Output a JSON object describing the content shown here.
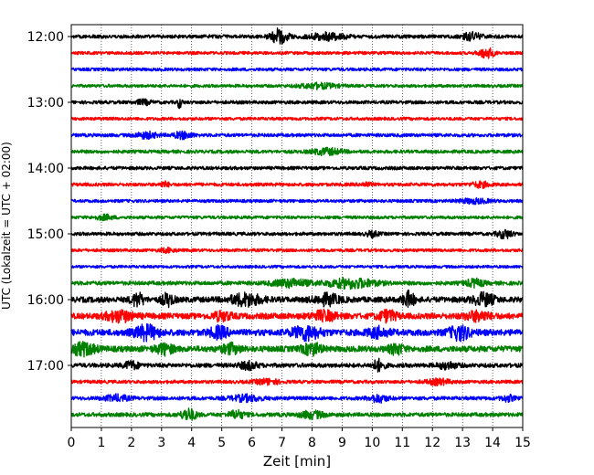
{
  "chart_data": {
    "type": "line",
    "title": "",
    "xlabel": "Zeit  [min]",
    "ylabel": "UTC (Lokalzeit = UTC + 02:00)",
    "xlim": [
      0,
      15
    ],
    "x_ticks": [
      "0",
      "1",
      "2",
      "3",
      "4",
      "5",
      "6",
      "7",
      "8",
      "9",
      "10",
      "11",
      "12",
      "13",
      "14",
      "15"
    ],
    "y_ticks": [
      "12:00",
      "13:00",
      "14:00",
      "15:00",
      "16:00",
      "17:00"
    ],
    "grid": "vertical-dotted",
    "trace_interval_min": 15,
    "trace_color_cycle": [
      "#000000",
      "#ff0000",
      "#0000ff",
      "#008000"
    ],
    "traces": [
      {
        "start": "12:00",
        "amplitude": 0.25,
        "events": [
          {
            "t": 6.9,
            "amp": 1.0,
            "dur": 0.6
          },
          {
            "t": 8.5,
            "amp": 0.45,
            "dur": 1.2
          },
          {
            "t": 13.3,
            "amp": 0.55,
            "dur": 0.6
          }
        ]
      },
      {
        "start": "12:15",
        "amplitude": 0.22,
        "events": [
          {
            "t": 13.8,
            "amp": 0.7,
            "dur": 0.5
          }
        ]
      },
      {
        "start": "12:30",
        "amplitude": 0.22,
        "events": []
      },
      {
        "start": "12:45",
        "amplitude": 0.22,
        "events": [
          {
            "t": 8.2,
            "amp": 0.35,
            "dur": 1.2
          }
        ]
      },
      {
        "start": "13:00",
        "amplitude": 0.24,
        "events": [
          {
            "t": 3.6,
            "amp": 0.7,
            "dur": 0.15
          },
          {
            "t": 2.4,
            "amp": 0.3,
            "dur": 0.5
          }
        ]
      },
      {
        "start": "13:15",
        "amplitude": 0.22,
        "events": []
      },
      {
        "start": "13:30",
        "amplitude": 0.24,
        "events": [
          {
            "t": 2.5,
            "amp": 0.4,
            "dur": 0.7
          },
          {
            "t": 3.7,
            "amp": 0.45,
            "dur": 0.6
          }
        ]
      },
      {
        "start": "13:45",
        "amplitude": 0.24,
        "events": [
          {
            "t": 8.5,
            "amp": 0.4,
            "dur": 1.0
          }
        ]
      },
      {
        "start": "14:00",
        "amplitude": 0.24,
        "events": []
      },
      {
        "start": "14:15",
        "amplitude": 0.24,
        "events": [
          {
            "t": 3.1,
            "amp": 0.35,
            "dur": 0.3
          },
          {
            "t": 9.8,
            "amp": 0.3,
            "dur": 0.3
          },
          {
            "t": 13.6,
            "amp": 0.35,
            "dur": 0.6
          }
        ]
      },
      {
        "start": "14:30",
        "amplitude": 0.22,
        "events": [
          {
            "t": 13.4,
            "amp": 0.3,
            "dur": 1.0
          }
        ]
      },
      {
        "start": "14:45",
        "amplitude": 0.22,
        "events": [
          {
            "t": 1.1,
            "amp": 0.3,
            "dur": 0.6
          }
        ]
      },
      {
        "start": "15:00",
        "amplitude": 0.24,
        "events": [
          {
            "t": 10.0,
            "amp": 0.35,
            "dur": 0.4
          },
          {
            "t": 14.4,
            "amp": 0.55,
            "dur": 0.5
          }
        ]
      },
      {
        "start": "15:15",
        "amplitude": 0.22,
        "events": [
          {
            "t": 3.2,
            "amp": 0.25,
            "dur": 0.5
          }
        ]
      },
      {
        "start": "15:30",
        "amplitude": 0.2,
        "events": []
      },
      {
        "start": "15:45",
        "amplitude": 0.28,
        "events": [
          {
            "t": 7.3,
            "amp": 0.5,
            "dur": 1.2
          },
          {
            "t": 9.3,
            "amp": 0.65,
            "dur": 1.6
          },
          {
            "t": 13.4,
            "amp": 0.5,
            "dur": 0.6
          }
        ]
      },
      {
        "start": "16:00",
        "amplitude": 0.4,
        "events": [
          {
            "t": 2.2,
            "amp": 0.9,
            "dur": 0.4
          },
          {
            "t": 3.2,
            "amp": 0.8,
            "dur": 0.4
          },
          {
            "t": 5.8,
            "amp": 0.8,
            "dur": 1.0
          },
          {
            "t": 8.5,
            "amp": 0.7,
            "dur": 0.8
          },
          {
            "t": 11.2,
            "amp": 1.0,
            "dur": 0.4
          },
          {
            "t": 13.7,
            "amp": 0.8,
            "dur": 0.7
          }
        ]
      },
      {
        "start": "16:15",
        "amplitude": 0.42,
        "events": [
          {
            "t": 1.6,
            "amp": 0.7,
            "dur": 0.9
          },
          {
            "t": 5.0,
            "amp": 0.55,
            "dur": 0.6
          },
          {
            "t": 8.4,
            "amp": 0.6,
            "dur": 0.8
          },
          {
            "t": 10.5,
            "amp": 0.7,
            "dur": 0.6
          },
          {
            "t": 13.5,
            "amp": 0.6,
            "dur": 0.8
          }
        ]
      },
      {
        "start": "16:30",
        "amplitude": 0.45,
        "events": [
          {
            "t": 2.5,
            "amp": 0.9,
            "dur": 0.8
          },
          {
            "t": 4.9,
            "amp": 0.7,
            "dur": 0.6
          },
          {
            "t": 7.8,
            "amp": 0.9,
            "dur": 0.9
          },
          {
            "t": 10.2,
            "amp": 0.6,
            "dur": 0.7
          },
          {
            "t": 12.9,
            "amp": 0.9,
            "dur": 0.7
          }
        ]
      },
      {
        "start": "16:45",
        "amplitude": 0.42,
        "events": [
          {
            "t": 0.4,
            "amp": 0.8,
            "dur": 0.8
          },
          {
            "t": 3.1,
            "amp": 0.65,
            "dur": 0.6
          },
          {
            "t": 5.3,
            "amp": 0.6,
            "dur": 0.6
          },
          {
            "t": 8.0,
            "amp": 0.75,
            "dur": 0.6
          },
          {
            "t": 10.8,
            "amp": 0.65,
            "dur": 0.5
          }
        ]
      },
      {
        "start": "17:00",
        "amplitude": 0.3,
        "events": [
          {
            "t": 2.0,
            "amp": 0.5,
            "dur": 0.5
          },
          {
            "t": 5.9,
            "amp": 0.5,
            "dur": 0.6
          },
          {
            "t": 10.2,
            "amp": 0.75,
            "dur": 0.4
          },
          {
            "t": 12.5,
            "amp": 0.45,
            "dur": 0.6
          }
        ]
      },
      {
        "start": "17:15",
        "amplitude": 0.24,
        "events": [
          {
            "t": 6.5,
            "amp": 0.35,
            "dur": 0.8
          },
          {
            "t": 12.2,
            "amp": 0.35,
            "dur": 0.8
          }
        ]
      },
      {
        "start": "17:30",
        "amplitude": 0.26,
        "events": [
          {
            "t": 1.5,
            "amp": 0.4,
            "dur": 0.8
          },
          {
            "t": 5.8,
            "amp": 0.4,
            "dur": 1.0
          },
          {
            "t": 10.2,
            "amp": 0.5,
            "dur": 0.6
          },
          {
            "t": 14.5,
            "amp": 0.4,
            "dur": 0.4
          }
        ]
      },
      {
        "start": "17:45",
        "amplitude": 0.28,
        "events": [
          {
            "t": 3.9,
            "amp": 0.8,
            "dur": 0.5
          },
          {
            "t": 5.5,
            "amp": 0.55,
            "dur": 0.5
          },
          {
            "t": 8.0,
            "amp": 0.45,
            "dur": 0.8
          }
        ]
      }
    ]
  }
}
